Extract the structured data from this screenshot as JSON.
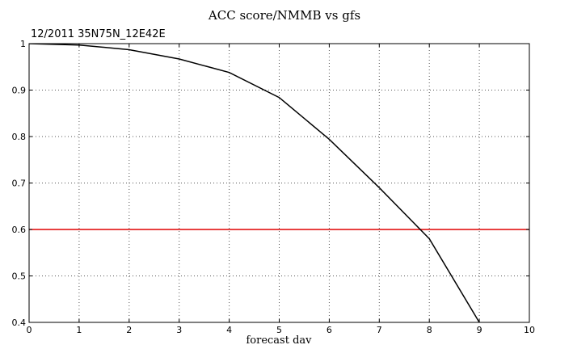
{
  "chart_data": {
    "type": "line",
    "title": "ACC score/NMMB vs gfs",
    "subtitle": "12/2011 35N75N_12E42E",
    "xlabel": "forecast dav",
    "ylabel": "",
    "xlim": [
      0,
      10
    ],
    "ylim": [
      0.4,
      1.0
    ],
    "xticks": [
      0,
      1,
      2,
      3,
      4,
      5,
      6,
      7,
      8,
      9,
      10
    ],
    "yticks": [
      0.4,
      0.5,
      0.6,
      0.7,
      0.8,
      0.9,
      1
    ],
    "ytick_labels": [
      "0.4",
      "0.5",
      "0.6",
      "0.7",
      "0.8",
      "0.9",
      "1"
    ],
    "grid": true,
    "series": [
      {
        "color": "#000000",
        "x": [
          0,
          1,
          2,
          3,
          4,
          5,
          6,
          7,
          8,
          9
        ],
        "y": [
          1.0,
          0.997,
          0.987,
          0.967,
          0.938,
          0.884,
          0.794,
          0.69,
          0.58,
          0.4
        ]
      }
    ],
    "reference_line": {
      "y": 0.6,
      "color": "#e00000"
    }
  }
}
